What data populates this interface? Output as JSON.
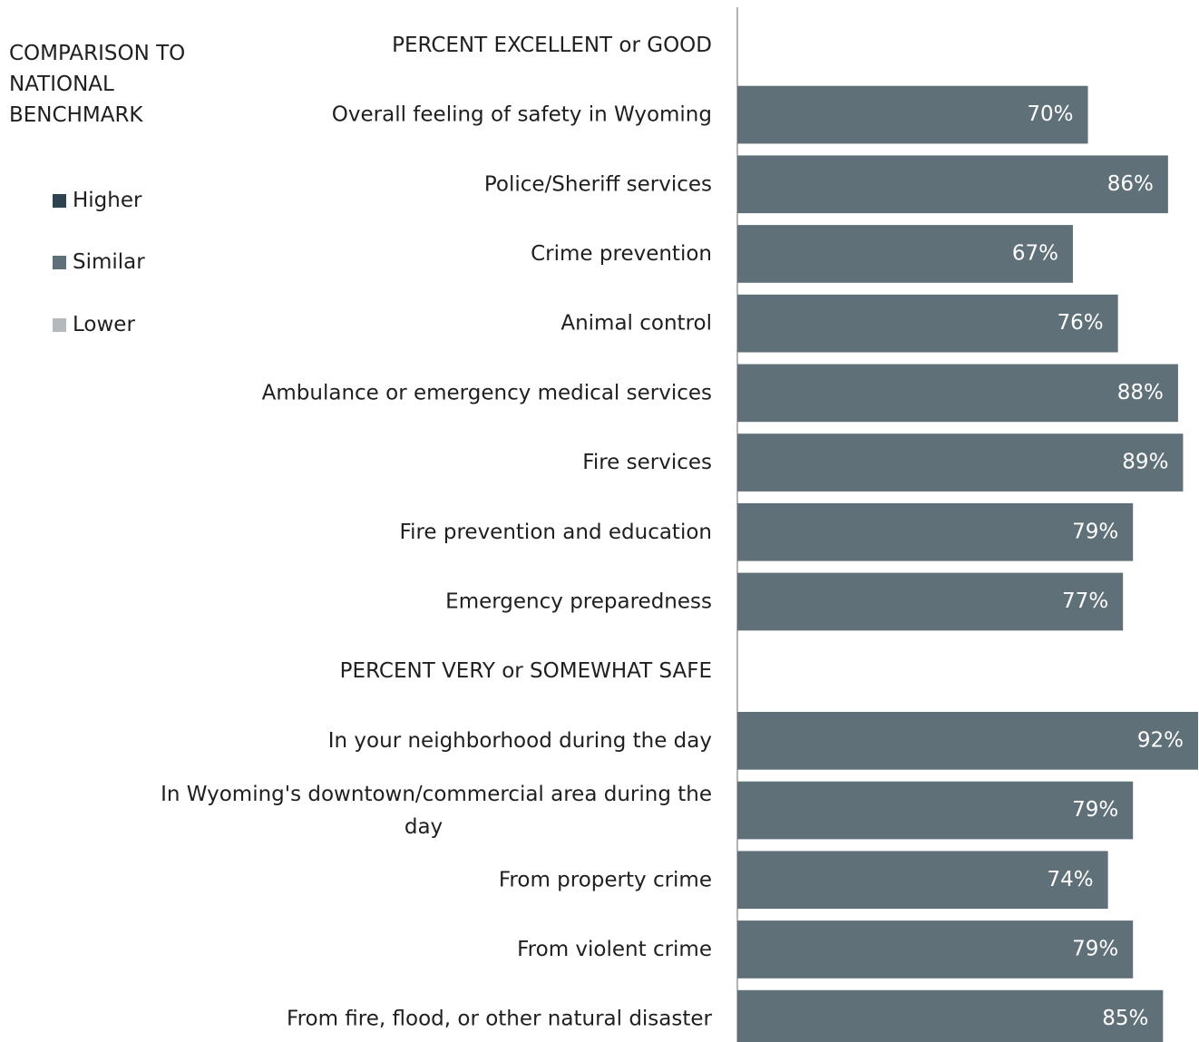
{
  "legend": {
    "title_lines": [
      "COMPARISON TO",
      "NATIONAL",
      "BENCHMARK"
    ],
    "items": [
      {
        "label": "Higher",
        "color": "#2e4250"
      },
      {
        "label": "Similar",
        "color": "#607078"
      },
      {
        "label": "Lower",
        "color": "#b3b9bc"
      }
    ]
  },
  "chart_data": {
    "type": "bar",
    "orientation": "horizontal",
    "xlim": [
      0,
      92
    ],
    "bar_color": "#607078",
    "rows": [
      {
        "kind": "header",
        "label": "PERCENT EXCELLENT or GOOD"
      },
      {
        "kind": "bar",
        "label": "Overall feeling of safety in Wyoming",
        "value": 70,
        "value_label": "70%",
        "comparison": "Similar"
      },
      {
        "kind": "bar",
        "label": "Police/Sheriff services",
        "value": 86,
        "value_label": "86%",
        "comparison": "Similar"
      },
      {
        "kind": "bar",
        "label": "Crime prevention",
        "value": 67,
        "value_label": "67%",
        "comparison": "Similar"
      },
      {
        "kind": "bar",
        "label": "Animal control",
        "value": 76,
        "value_label": "76%",
        "comparison": "Similar"
      },
      {
        "kind": "bar",
        "label": "Ambulance or emergency medical services",
        "value": 88,
        "value_label": "88%",
        "comparison": "Similar"
      },
      {
        "kind": "bar",
        "label": "Fire services",
        "value": 89,
        "value_label": "89%",
        "comparison": "Similar"
      },
      {
        "kind": "bar",
        "label": "Fire prevention and education",
        "value": 79,
        "value_label": "79%",
        "comparison": "Similar"
      },
      {
        "kind": "bar",
        "label": "Emergency preparedness",
        "value": 77,
        "value_label": "77%",
        "comparison": "Similar"
      },
      {
        "kind": "header",
        "label": "PERCENT VERY or SOMEWHAT SAFE"
      },
      {
        "kind": "bar",
        "label": "In your neighborhood during the day",
        "value": 92,
        "value_label": "92%",
        "comparison": "Similar"
      },
      {
        "kind": "bar",
        "label": "In Wyoming's downtown/commercial area during the day",
        "label_lines": [
          "In Wyoming's downtown/commercial area during the",
          "day"
        ],
        "value": 79,
        "value_label": "79%",
        "comparison": "Similar"
      },
      {
        "kind": "bar",
        "label": "From property crime",
        "value": 74,
        "value_label": "74%",
        "comparison": "Similar"
      },
      {
        "kind": "bar",
        "label": "From violent crime",
        "value": 79,
        "value_label": "79%",
        "comparison": "Similar"
      },
      {
        "kind": "bar",
        "label": "From fire, flood, or other natural disaster",
        "value": 85,
        "value_label": "85%",
        "comparison": "Similar"
      }
    ]
  }
}
